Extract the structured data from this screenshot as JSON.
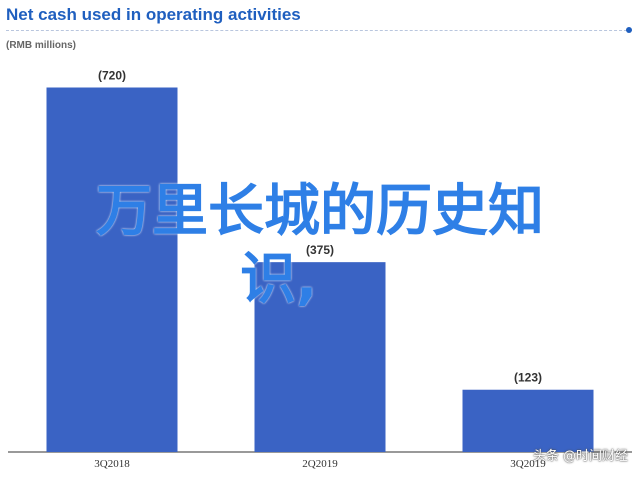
{
  "chart_data": {
    "type": "bar",
    "title": "Net cash used in operating activities",
    "subtitle": "(RMB millions)",
    "categories": [
      "3Q2018",
      "2Q2019",
      "3Q2019"
    ],
    "values": [
      -720,
      -375,
      -123
    ],
    "value_labels": [
      "(720)",
      "(375)",
      "(123)"
    ],
    "bar_color": "#3a63c4",
    "title_color": "#1f5fbf",
    "grid": false,
    "legend": "none",
    "ylim": [
      0,
      800
    ]
  },
  "overlay": {
    "text_line1": "万里长城的历史知",
    "text_line2": "识,",
    "color": "#2e7fe6"
  },
  "watermark": "头条 @时间财经"
}
